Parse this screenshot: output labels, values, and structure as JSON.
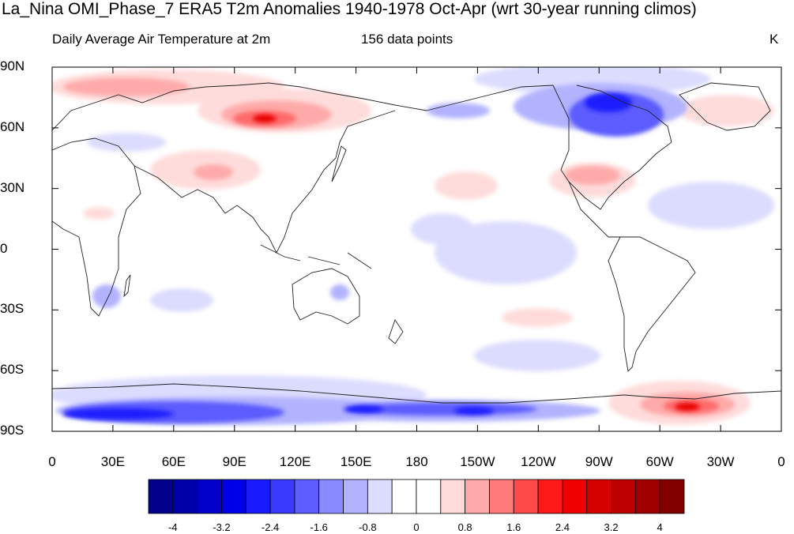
{
  "title": "La_Nina OMI_Phase_7 ERA5 T2m Anomalies 1940-1978 Oct-Apr (wrt 30-year running climos)",
  "subtitle_left": "Daily Average Air Temperature at 2m",
  "subtitle_center": "156 data points",
  "subtitle_right": "K",
  "y_ticks": [
    "90N",
    "60N",
    "30N",
    "0",
    "30S",
    "60S",
    "90S"
  ],
  "x_ticks": [
    "0",
    "30E",
    "60E",
    "90E",
    "120E",
    "150E",
    "180",
    "150W",
    "120W",
    "90W",
    "60W",
    "30W",
    "0"
  ],
  "colorbar": {
    "colors": [
      "#00008b",
      "#0000a8",
      "#0000c8",
      "#0000e6",
      "#1a1aff",
      "#3a3aff",
      "#5c5cff",
      "#8a8aff",
      "#b2b2ff",
      "#dcdcff",
      "#ffffff",
      "#ffffff",
      "#ffdcdc",
      "#ffaaaa",
      "#ff7a7a",
      "#ff4a4a",
      "#ff1a1a",
      "#f00000",
      "#d60000",
      "#bc0000",
      "#a00000",
      "#820000"
    ],
    "labels": [
      "-4",
      "-3.2",
      "-2.4",
      "-1.6",
      "-0.8",
      "0",
      "0.8",
      "1.6",
      "2.4",
      "3.2",
      "4"
    ]
  }
}
